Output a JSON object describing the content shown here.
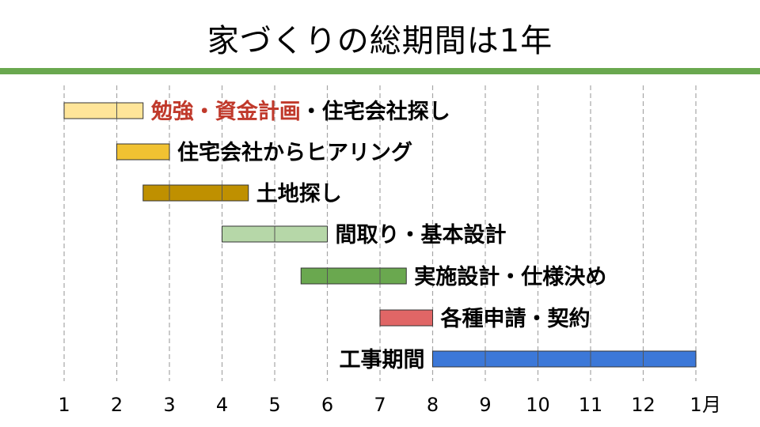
{
  "title": "家づくりの総期間は1年",
  "accent_rule_color": "#6aa84f",
  "chart_data": {
    "type": "gantt",
    "x_ticks": [
      "1",
      "2",
      "3",
      "4",
      "5",
      "6",
      "7",
      "8",
      "9",
      "10",
      "11",
      "12",
      "1"
    ],
    "x_unit_label": "月",
    "gridlines": "dashed vertical at each month",
    "tasks": [
      {
        "label_parts": [
          {
            "text": "勉強・資金計画",
            "color": "#c0392b"
          },
          {
            "text": "・住宅会社探し",
            "color": "#000000"
          }
        ],
        "start": 1,
        "end": 2.5,
        "color": "#ffe599",
        "label_side": "right"
      },
      {
        "label_parts": [
          {
            "text": "住宅会社からヒアリング",
            "color": "#000000"
          }
        ],
        "start": 2,
        "end": 3,
        "color": "#f1c232",
        "label_side": "right"
      },
      {
        "label_parts": [
          {
            "text": "土地探し",
            "color": "#000000"
          }
        ],
        "start": 2.5,
        "end": 4.5,
        "color": "#bf9000",
        "label_side": "right"
      },
      {
        "label_parts": [
          {
            "text": "間取り・基本設計",
            "color": "#000000"
          }
        ],
        "start": 4,
        "end": 6,
        "color": "#b6d7a8",
        "label_side": "right"
      },
      {
        "label_parts": [
          {
            "text": "実施設計・仕様決め",
            "color": "#000000"
          }
        ],
        "start": 5.5,
        "end": 7.5,
        "color": "#6aa84f",
        "label_side": "right"
      },
      {
        "label_parts": [
          {
            "text": "各種申請・契約",
            "color": "#000000"
          }
        ],
        "start": 7,
        "end": 8,
        "color": "#e06666",
        "label_side": "right"
      },
      {
        "label_parts": [
          {
            "text": "工事期間",
            "color": "#000000"
          }
        ],
        "start": 8,
        "end": 13,
        "color": "#3c78d8",
        "label_side": "left"
      }
    ]
  }
}
